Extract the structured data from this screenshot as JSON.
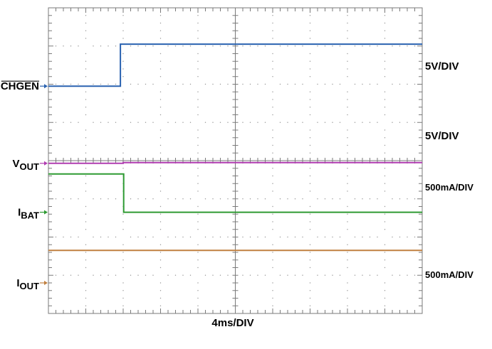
{
  "chart_data": {
    "type": "line",
    "title": "",
    "xlabel": "4ms/DIV",
    "ylabel": "",
    "x_divisions": 10,
    "y_divisions": 8,
    "xlim": [
      0,
      40
    ],
    "grid": true,
    "time_unit": "ms",
    "channels": [
      {
        "name": "CHGEN",
        "overbar": true,
        "sub": "",
        "color": "#2a62b0",
        "scale_label": "5V/DIV",
        "ground_div": 5.95,
        "x": [
          0,
          7.7,
          7.7,
          40
        ],
        "y": [
          0,
          0,
          1.1,
          1.1
        ]
      },
      {
        "name": "V",
        "overbar": false,
        "sub": "OUT",
        "color": "#b03cb0",
        "scale_label": "5V/DIV",
        "ground_div": 3.93,
        "x": [
          0,
          8,
          8,
          40
        ],
        "y": [
          0,
          0,
          0.02,
          0.02
        ]
      },
      {
        "name": "I",
        "overbar": false,
        "sub": "BAT",
        "color": "#2e9a32",
        "scale_label": "500mA/DIV",
        "ground_div": 2.65,
        "x": [
          0,
          8.05,
          8.05,
          40
        ],
        "y": [
          1.0,
          1.0,
          0.0,
          0.0
        ]
      },
      {
        "name": "I",
        "overbar": false,
        "sub": "OUT",
        "color": "#c08040",
        "scale_label": "500mA/DIV",
        "ground_div": 0.8,
        "x": [
          0,
          40
        ],
        "y": [
          0.85,
          0.85
        ]
      }
    ]
  }
}
